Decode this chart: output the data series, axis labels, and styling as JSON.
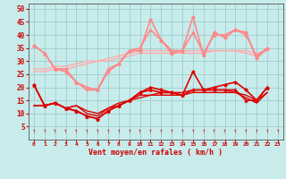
{
  "x": [
    0,
    1,
    2,
    3,
    4,
    5,
    6,
    7,
    8,
    9,
    10,
    11,
    12,
    13,
    14,
    15,
    16,
    17,
    18,
    19,
    20,
    21,
    22,
    23
  ],
  "background_color": "#c8ecec",
  "grid_color": "#a0cccc",
  "xlabel": "Vent moyen/en rafales ( km/h )",
  "ylabel_ticks": [
    5,
    10,
    15,
    20,
    25,
    30,
    35,
    40,
    45,
    50
  ],
  "xlim": [
    -0.5,
    23.5
  ],
  "ylim": [
    0,
    52
  ],
  "line_dark1": {
    "y": [
      21,
      13,
      14,
      12,
      11,
      9,
      8,
      11,
      13,
      15,
      18,
      20,
      19,
      18,
      17,
      26,
      19,
      20,
      21,
      22,
      19,
      15,
      20
    ],
    "color": "#dd0000",
    "linewidth": 1.2,
    "marker": "D",
    "markersize": 2.0
  },
  "line_dark2": {
    "y": [
      21,
      13,
      14,
      12,
      11,
      9,
      8,
      11,
      13,
      15,
      18,
      19,
      18,
      18,
      17,
      19,
      19,
      19,
      19,
      19,
      15,
      15,
      20
    ],
    "color": "#dd0000",
    "linewidth": 1.2,
    "marker": "^",
    "markersize": 2.5
  },
  "line_dark3": {
    "y": [
      13,
      13,
      14,
      12,
      13,
      10,
      9,
      12,
      13,
      15,
      16,
      17,
      17,
      17,
      17,
      18,
      18,
      18,
      18,
      18,
      16,
      14,
      18
    ],
    "color": "#dd0000",
    "linewidth": 1.0,
    "marker": "None",
    "markersize": 0
  },
  "line_dark4": {
    "y": [
      13,
      13,
      14,
      12,
      13,
      11,
      10,
      12,
      14,
      15,
      17,
      17,
      18,
      18,
      18,
      19,
      19,
      19,
      19,
      18,
      17,
      15,
      18
    ],
    "color": "#dd0000",
    "linewidth": 1.0,
    "marker": "None",
    "markersize": 0
  },
  "line_pink1": {
    "y": [
      36,
      33,
      27,
      27,
      22,
      19,
      19,
      26,
      29,
      34,
      34,
      46,
      38,
      33,
      34,
      47,
      32,
      41,
      39,
      42,
      41,
      31,
      35
    ],
    "color": "#ff8888",
    "linewidth": 1.2,
    "marker": "D",
    "markersize": 2.0
  },
  "line_pink2": {
    "y": [
      36,
      33,
      27,
      26,
      22,
      20,
      19,
      27,
      29,
      34,
      35,
      42,
      38,
      34,
      34,
      41,
      33,
      40,
      40,
      42,
      40,
      32,
      35
    ],
    "color": "#ff8888",
    "linewidth": 1.2,
    "marker": "^",
    "markersize": 2.5
  },
  "line_pink3": {
    "y": [
      26,
      26,
      27,
      27,
      28,
      29,
      30,
      30,
      31,
      32,
      33,
      33,
      33,
      33,
      33,
      33,
      33,
      34,
      34,
      34,
      33,
      32,
      34
    ],
    "color": "#ffaaaa",
    "linewidth": 1.0,
    "marker": "None",
    "markersize": 0
  },
  "line_pink4": {
    "y": [
      27,
      27,
      28,
      28,
      29,
      30,
      30,
      31,
      32,
      33,
      34,
      34,
      34,
      34,
      34,
      34,
      34,
      34,
      34,
      34,
      34,
      33,
      34
    ],
    "color": "#ffaaaa",
    "linewidth": 1.0,
    "marker": "None",
    "markersize": 0
  }
}
